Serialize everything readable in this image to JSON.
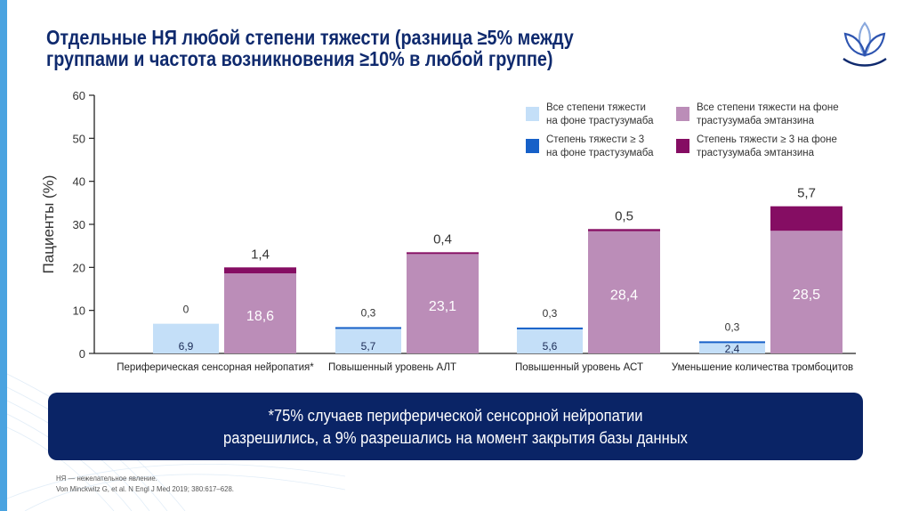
{
  "slide": {
    "title_line1": "Отдельные НЯ любой степени тяжести (разница ≥5% между",
    "title_line2": "группами и частота возникновения ≥10% в любой группе)",
    "logo_icon": "lotus-logo-icon",
    "banner_line1": "*75% случаев периферической сенсорной нейропатии",
    "banner_line2": "разрешились, а 9% разрешались на момент закрытия базы данных",
    "footnote_line1": "НЯ — нежелательное явление.",
    "footnote_line2": "Von Minckwitz G, et al. N Engl J Med 2019; 380:617–628.",
    "colors": {
      "title": "#0f2a6e",
      "stripe": "#4aa3e0",
      "banner": "#0a2466"
    }
  },
  "chart_data": {
    "type": "bar",
    "stacked": true,
    "ylabel": "Пациенты (%)",
    "xlabel": "",
    "ylim": [
      0,
      60
    ],
    "yticks": [
      0,
      10,
      20,
      30,
      40,
      50,
      60
    ],
    "grid": false,
    "legend_position": "top-right",
    "categories": [
      "Периферическая сенсорная нейропатия*",
      "Повышенный уровень АЛТ",
      "Повышенный уровень АСТ",
      "Уменьшение количества тромбоцитов"
    ],
    "legend": [
      {
        "line1": "Все степени тяжести",
        "line2": "на фоне трастузумаба",
        "color": "#c4dff8"
      },
      {
        "line1": "Все степени тяжести на фоне",
        "line2": "трастузумаба эмтанзина",
        "color": "#bb8db8"
      },
      {
        "line1": "Степень тяжести ≥ 3",
        "line2": "на фоне трастузумаба",
        "color": "#1660c8"
      },
      {
        "line1": "Степень тяжести ≥ 3 на фоне",
        "line2": "трастузумаба эмтанзина",
        "color": "#850d63"
      }
    ],
    "series": [
      {
        "name": "Трастузумаб: все степени тяжести",
        "drug": "trastuzumab",
        "part": "all",
        "values": [
          6.9,
          5.7,
          5.6,
          2.4
        ],
        "labels": [
          "6,9",
          "5,7",
          "5,6",
          "2,4"
        ],
        "color": "#c4dff8",
        "label_color": "#1a2a55"
      },
      {
        "name": "Трастузумаб: степень тяжести ≥ 3",
        "drug": "trastuzumab",
        "part": "grade3",
        "values": [
          0,
          0.3,
          0.3,
          0.3
        ],
        "labels": [
          "0",
          "0,3",
          "0,3",
          "0,3"
        ],
        "color": "#1660c8",
        "label_color": "#333333"
      },
      {
        "name": "Трастузумаб эмтанзин: все степени тяжести",
        "drug": "tdm1",
        "part": "all",
        "values": [
          18.6,
          23.1,
          28.4,
          28.5
        ],
        "labels": [
          "18,6",
          "23,1",
          "28,4",
          "28,5"
        ],
        "color": "#bb8db8",
        "label_color": "#ffffff"
      },
      {
        "name": "Трастузумаб эмтанзин: степень тяжести ≥ 3",
        "drug": "tdm1",
        "part": "grade3",
        "values": [
          1.4,
          0.4,
          0.5,
          5.7
        ],
        "labels": [
          "1,4",
          "0,4",
          "0,5",
          "5,7"
        ],
        "color": "#850d63",
        "label_color": "#333333"
      }
    ]
  }
}
